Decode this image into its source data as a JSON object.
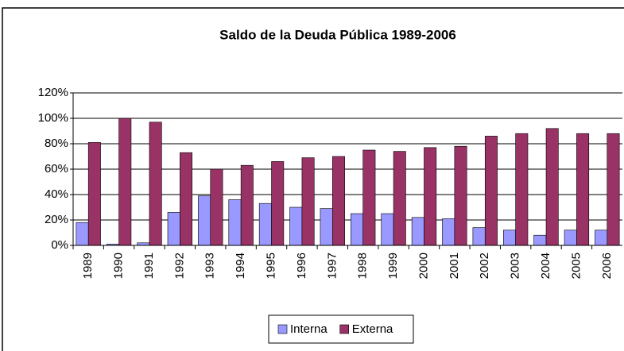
{
  "chart_data": {
    "type": "bar",
    "title": "Saldo de la Deuda Pública 1989-2006",
    "categories": [
      "1989",
      "1990",
      "1991",
      "1992",
      "1993",
      "1994",
      "1995",
      "1996",
      "1997",
      "1998",
      "1999",
      "2000",
      "2001",
      "2002",
      "2003",
      "2004",
      "2005",
      "2006"
    ],
    "series": [
      {
        "name": "Interna",
        "color": "#9999ff",
        "values": [
          18,
          1,
          2,
          26,
          39,
          36,
          33,
          30,
          29,
          25,
          25,
          22,
          21,
          14,
          12,
          8,
          12,
          12
        ]
      },
      {
        "name": "Externa",
        "color": "#993366",
        "values": [
          81,
          100,
          97,
          73,
          60,
          63,
          66,
          69,
          70,
          75,
          74,
          77,
          78,
          86,
          88,
          92,
          88,
          88
        ]
      }
    ],
    "ylim": [
      0,
      120
    ],
    "yticks": [
      {
        "value": 0,
        "label": "0%"
      },
      {
        "value": 20,
        "label": "20%"
      },
      {
        "value": 40,
        "label": "40%"
      },
      {
        "value": 60,
        "label": "60%"
      },
      {
        "value": 80,
        "label": "80%"
      },
      {
        "value": 100,
        "label": "100%"
      },
      {
        "value": 120,
        "label": "120%"
      }
    ],
    "grid": true,
    "legend": "bottom"
  }
}
